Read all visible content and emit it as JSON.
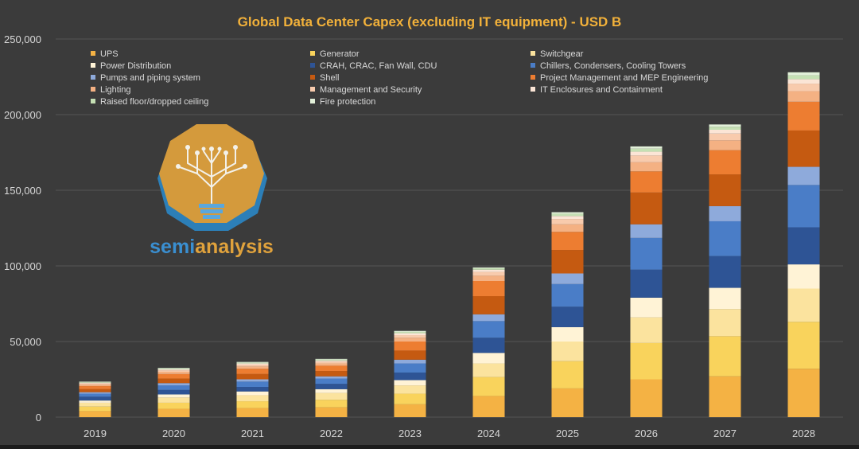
{
  "chart_data": {
    "type": "bar",
    "stacked": true,
    "title": "Global Data Center Capex (excluding IT equipment) - USD B",
    "xlabel": "",
    "ylabel": "",
    "ylim": [
      0,
      250000
    ],
    "yticks": [
      "0",
      "50,000",
      "100,000",
      "150,000",
      "200,000",
      "250,000"
    ],
    "yticks_values": [
      0,
      50000,
      100000,
      150000,
      200000,
      250000
    ],
    "grid": true,
    "legend_position": "top",
    "categories": [
      "2019",
      "2020",
      "2021",
      "2022",
      "2023",
      "2024",
      "2025",
      "2026",
      "2027",
      "2028"
    ],
    "series": [
      {
        "name": "UPS",
        "color": "#f4b244",
        "values": [
          4000,
          5500,
          6000,
          6500,
          8500,
          14000,
          19000,
          25000,
          27000,
          32000
        ]
      },
      {
        "name": "Generator",
        "color": "#f9d35c",
        "values": [
          3000,
          4000,
          4500,
          5000,
          7000,
          12500,
          18000,
          24000,
          26500,
          31000
        ]
      },
      {
        "name": "Switchgear",
        "color": "#fbe39e",
        "values": [
          2500,
          3500,
          4000,
          4500,
          5500,
          9000,
          13000,
          17000,
          18000,
          22000
        ]
      },
      {
        "name": "Power Distribution",
        "color": "#fff3d6",
        "values": [
          1500,
          2000,
          2500,
          2500,
          3500,
          7000,
          9500,
          13000,
          14000,
          16000
        ]
      },
      {
        "name": "CRAH, CRAC, Fan Wall, CDU",
        "color": "#2e5495",
        "values": [
          2500,
          3000,
          3000,
          3500,
          5000,
          10000,
          13500,
          18500,
          21000,
          24500
        ]
      },
      {
        "name": "Chillers, Condensers, Cooling Towers",
        "color": "#4a7dc7",
        "values": [
          2000,
          3000,
          3500,
          3500,
          6000,
          11000,
          15000,
          21000,
          23000,
          28000
        ]
      },
      {
        "name": "Pumps and piping system",
        "color": "#8eaadb",
        "values": [
          1000,
          1500,
          1500,
          1500,
          2500,
          4500,
          7000,
          9000,
          10000,
          12000
        ]
      },
      {
        "name": "Shell",
        "color": "#c55a11",
        "values": [
          2000,
          3000,
          3500,
          3500,
          6000,
          12000,
          15500,
          21000,
          21000,
          24000
        ]
      },
      {
        "name": "Project Management and MEP Engineering",
        "color": "#ed7d31",
        "values": [
          2000,
          3000,
          3500,
          3500,
          6000,
          10000,
          12000,
          14000,
          16000,
          19000
        ]
      },
      {
        "name": "Lighting",
        "color": "#f4b183",
        "values": [
          1000,
          1500,
          1500,
          1500,
          2500,
          3500,
          5000,
          6000,
          6500,
          7000
        ]
      },
      {
        "name": "Management and Security",
        "color": "#f8cbad",
        "values": [
          800,
          1000,
          1200,
          1200,
          1700,
          2500,
          3500,
          4500,
          4500,
          5000
        ]
      },
      {
        "name": "IT Enclosures and Containment",
        "color": "#fbe5d6",
        "values": [
          500,
          700,
          800,
          800,
          1300,
          1500,
          2000,
          2500,
          2500,
          3000
        ]
      },
      {
        "name": "Raised floor/dropped ceiling",
        "color": "#c5e0b4",
        "values": [
          400,
          500,
          500,
          600,
          800,
          1000,
          1500,
          2000,
          2000,
          2500
        ]
      },
      {
        "name": "Fire protection",
        "color": "#e2f0d9",
        "values": [
          300,
          400,
          500,
          400,
          700,
          500,
          1000,
          1500,
          1500,
          2000
        ]
      }
    ]
  },
  "logo": {
    "text_semi": "semi",
    "text_analysis": "analysis"
  }
}
